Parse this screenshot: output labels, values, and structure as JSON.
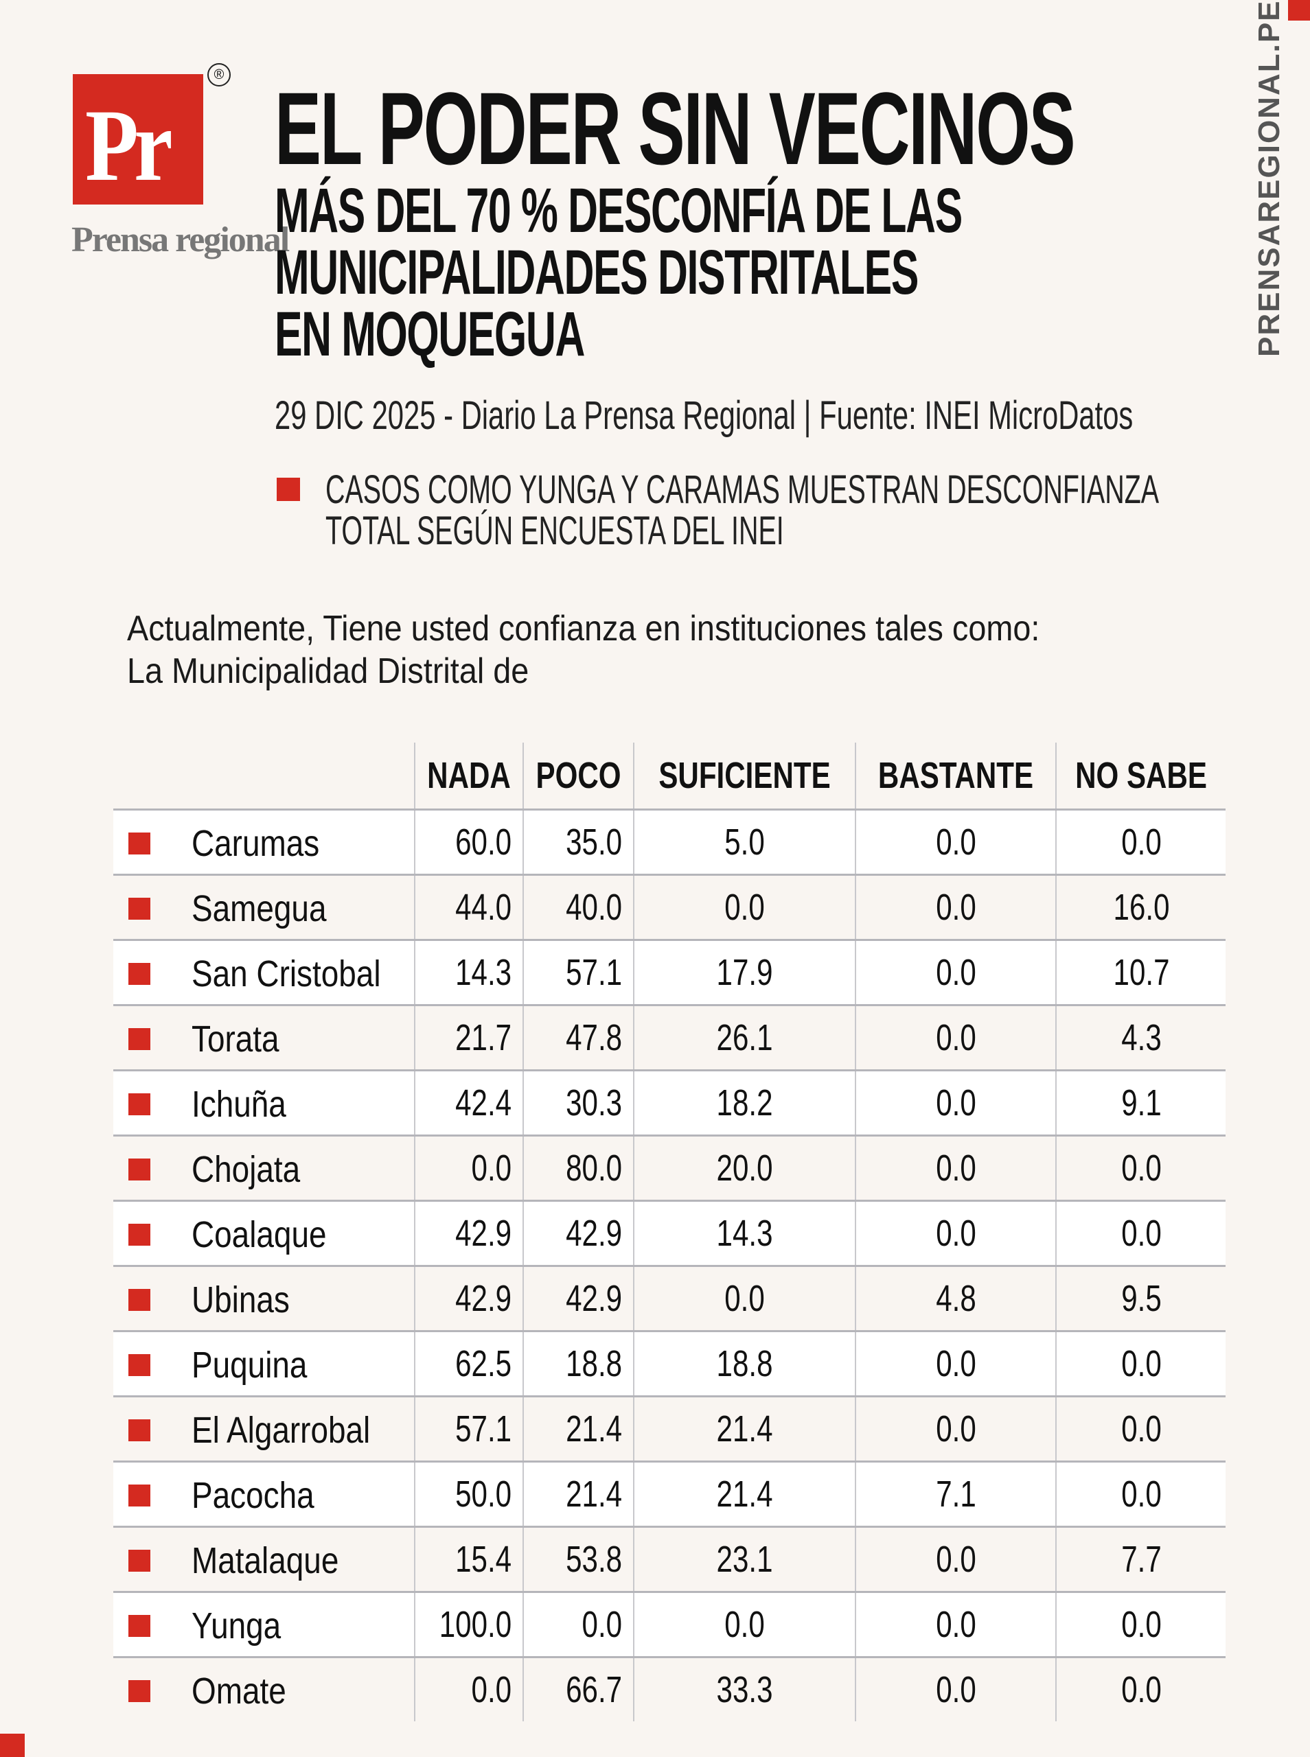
{
  "brand": {
    "logo_letters": "Pr",
    "name": "Prensa regional",
    "registered": "®",
    "website": "PRENSAREGIONAL.PE",
    "accent_color": "#d42a20"
  },
  "header": {
    "title": "EL PODER SIN VECINOS",
    "subtitle_lines": [
      "MÁS DEL 70 % DESCONFÍA DE LAS",
      "MUNICIPALIDADES DISTRITALES",
      "EN MOQUEGUA"
    ],
    "dateline": "29 DIC 2025 - Diario La Prensa Regional | Fuente: INEI MicroDatos",
    "bullet_lines": [
      "CASOS COMO YUNGA Y CARAMAS MUESTRAN DESCONFIANZA",
      "TOTAL SEGÚN ENCUESTA DEL INEI"
    ]
  },
  "question_lines": [
    "Actualmente, Tiene usted confianza en instituciones tales como:",
    "La Municipalidad Distrital de"
  ],
  "table": {
    "columns": [
      "NADA",
      "POCO",
      "SUFICIENTE",
      "BASTANTE",
      "NO SABE"
    ],
    "rows": [
      {
        "name": "Carumas",
        "values": [
          "60.0",
          "35.0",
          "5.0",
          "0.0",
          "0.0"
        ]
      },
      {
        "name": "Samegua",
        "values": [
          "44.0",
          "40.0",
          "0.0",
          "0.0",
          "16.0"
        ]
      },
      {
        "name": "San Cristobal",
        "values": [
          "14.3",
          "57.1",
          "17.9",
          "0.0",
          "10.7"
        ]
      },
      {
        "name": "Torata",
        "values": [
          "21.7",
          "47.8",
          "26.1",
          "0.0",
          "4.3"
        ]
      },
      {
        "name": "Ichuña",
        "values": [
          "42.4",
          "30.3",
          "18.2",
          "0.0",
          "9.1"
        ]
      },
      {
        "name": "Chojata",
        "values": [
          "0.0",
          "80.0",
          "20.0",
          "0.0",
          "0.0"
        ]
      },
      {
        "name": "Coalaque",
        "values": [
          "42.9",
          "42.9",
          "14.3",
          "0.0",
          "0.0"
        ]
      },
      {
        "name": "Ubinas",
        "values": [
          "42.9",
          "42.9",
          "0.0",
          "4.8",
          "9.5"
        ]
      },
      {
        "name": "Puquina",
        "values": [
          "62.5",
          "18.8",
          "18.8",
          "0.0",
          "0.0"
        ]
      },
      {
        "name": "El Algarrobal",
        "values": [
          "57.1",
          "21.4",
          "21.4",
          "0.0",
          "0.0"
        ]
      },
      {
        "name": "Pacocha",
        "values": [
          "50.0",
          "21.4",
          "21.4",
          "7.1",
          "0.0"
        ]
      },
      {
        "name": "Matalaque",
        "values": [
          "15.4",
          "53.8",
          "23.1",
          "0.0",
          "7.7"
        ]
      },
      {
        "name": "Yunga",
        "values": [
          "100.0",
          "0.0",
          "0.0",
          "0.0",
          "0.0"
        ]
      },
      {
        "name": "Omate",
        "values": [
          "0.0",
          "66.7",
          "33.3",
          "0.0",
          "0.0"
        ]
      }
    ]
  }
}
